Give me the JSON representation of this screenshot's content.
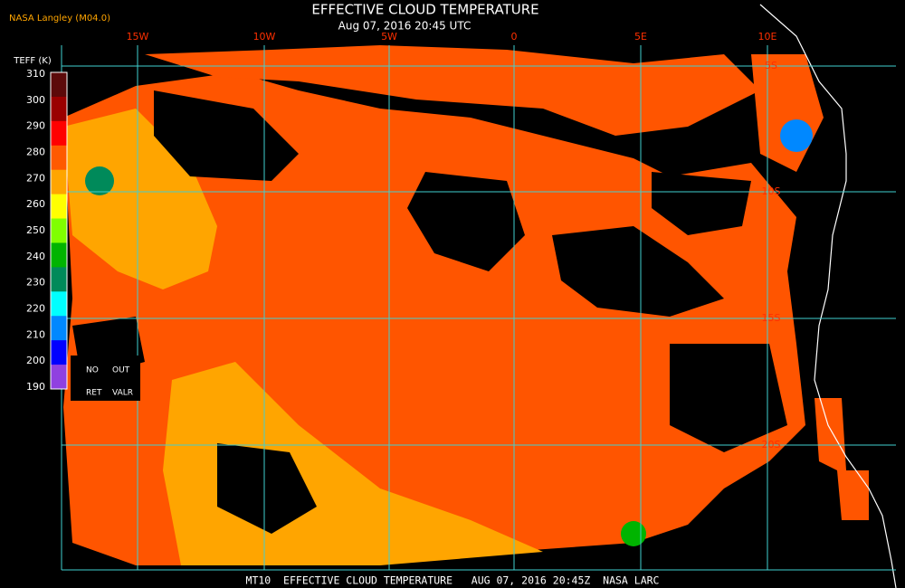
{
  "header": {
    "source": "NASA Langley (M04.0)",
    "title": "EFFECTIVE CLOUD TEMPERATURE",
    "subtitle": "Aug 07, 2016 20:45 UTC"
  },
  "colorbar": {
    "title": "TEFF (K)",
    "ticks": [
      310,
      300,
      290,
      280,
      270,
      260,
      250,
      240,
      230,
      220,
      210,
      200,
      190
    ],
    "colors": [
      "#5c0a0a",
      "#9a0000",
      "#ff0000",
      "#ff5a00",
      "#ffa500",
      "#ffff00",
      "#80ff00",
      "#00b400",
      "#008a5a",
      "#00ffff",
      "#0088ff",
      "#0000ff",
      "#9040e0"
    ]
  },
  "missing": {
    "labels": [
      "NO",
      "OUT",
      "RET",
      "VALR"
    ]
  },
  "grid": {
    "lon_labels": [
      "15W",
      "10W",
      "5W",
      "0",
      "5E",
      "10E"
    ],
    "lat_labels": [
      "5S",
      "10S",
      "15S",
      "20S"
    ]
  },
  "footer": "MT10  EFFECTIVE CLOUD TEMPERATURE   AUG 07, 2016 20:45Z  NASA LARC"
}
